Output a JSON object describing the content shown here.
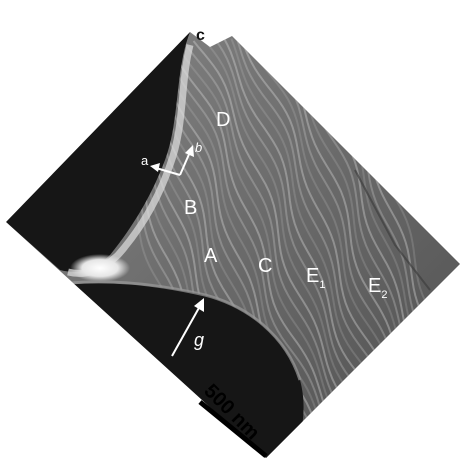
{
  "figure": {
    "panel_label": "c",
    "region_labels": {
      "D": "D",
      "B": "B",
      "A": "A",
      "C": "C",
      "E1_main": "E",
      "E1_sub": "1",
      "E2_main": "E",
      "E2_sub": "2"
    },
    "vector_labels": {
      "a": "a",
      "b": "b",
      "g": "g"
    },
    "scale_bar": {
      "label": "500 nm"
    },
    "colors": {
      "background": "#ffffff",
      "hole": "#161616",
      "film": "#6f6f6f",
      "fringe_light": "#cfcfcf",
      "label": "#ffffff",
      "scale_text": "#000000"
    }
  }
}
